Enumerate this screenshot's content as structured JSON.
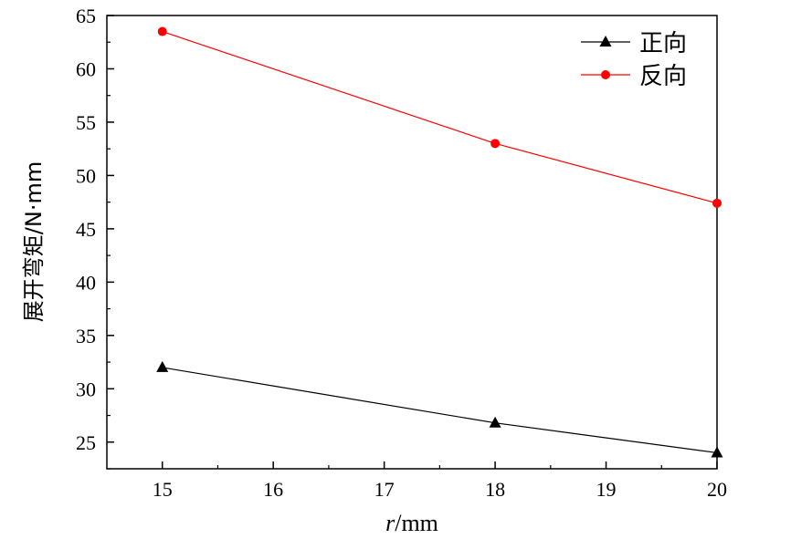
{
  "chart_data": {
    "type": "line",
    "xlabel_var": "r",
    "xlabel_unit": "/mm",
    "ylabel": "展开弯矩/N·mm",
    "xlim": [
      14.5,
      20
    ],
    "ylim": [
      22.5,
      65
    ],
    "x_ticks": [
      15,
      16,
      17,
      18,
      19,
      20
    ],
    "y_ticks": [
      25,
      30,
      35,
      40,
      45,
      50,
      55,
      60,
      65
    ],
    "grid": false,
    "legend_position": "top-right",
    "series": [
      {
        "name": "正向",
        "color": "#000000",
        "marker": "triangle",
        "x": [
          15,
          18,
          20
        ],
        "y": [
          32.0,
          26.8,
          24.0
        ]
      },
      {
        "name": "反向",
        "color": "#ff0000",
        "marker": "circle",
        "x": [
          15,
          18,
          20
        ],
        "y": [
          63.5,
          53.0,
          47.4
        ]
      }
    ]
  }
}
